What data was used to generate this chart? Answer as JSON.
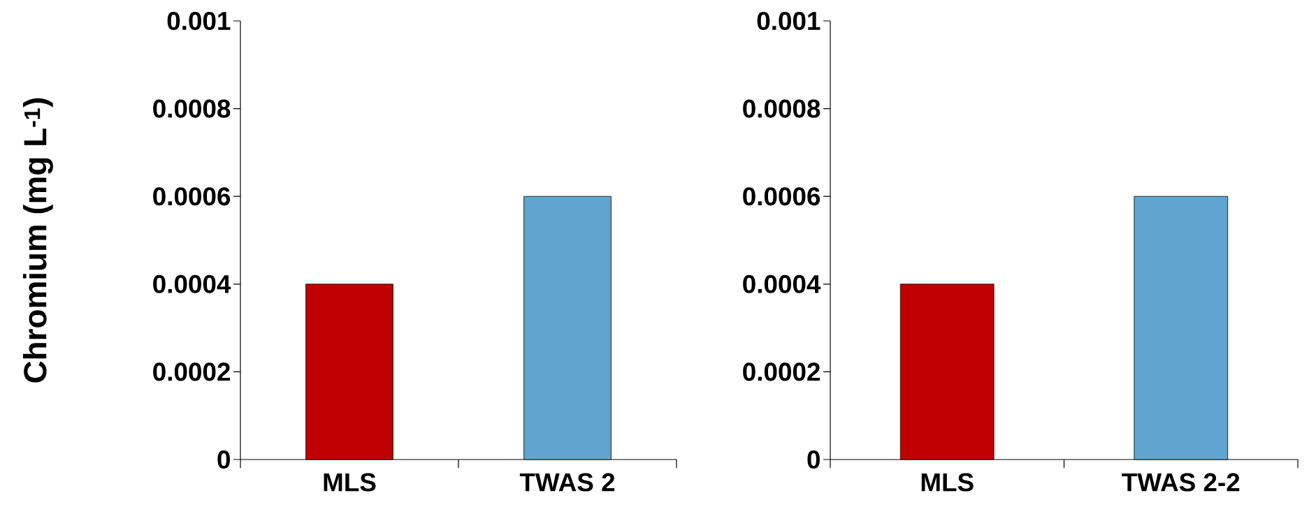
{
  "chart_data": [
    {
      "type": "bar",
      "ylabel": "Chromium (mg L$^{-1}$)",
      "categories": [
        "MLS",
        "TWAS 2"
      ],
      "values": [
        0.0004,
        0.0006
      ],
      "colors": [
        "#c00000",
        "#5fa5cf"
      ],
      "ylim": [
        0,
        0.001
      ],
      "yticks": [
        0,
        0.0002,
        0.0004,
        0.0006,
        0.0008,
        0.001
      ]
    },
    {
      "type": "bar",
      "categories": [
        "MLS",
        "TWAS 2-2"
      ],
      "values": [
        0.0004,
        0.0006
      ],
      "colors": [
        "#c00000",
        "#5fa5cf"
      ],
      "ylim": [
        0,
        0.001
      ],
      "yticks": [
        0,
        0.0002,
        0.0004,
        0.0006,
        0.0008,
        0.001
      ]
    }
  ]
}
